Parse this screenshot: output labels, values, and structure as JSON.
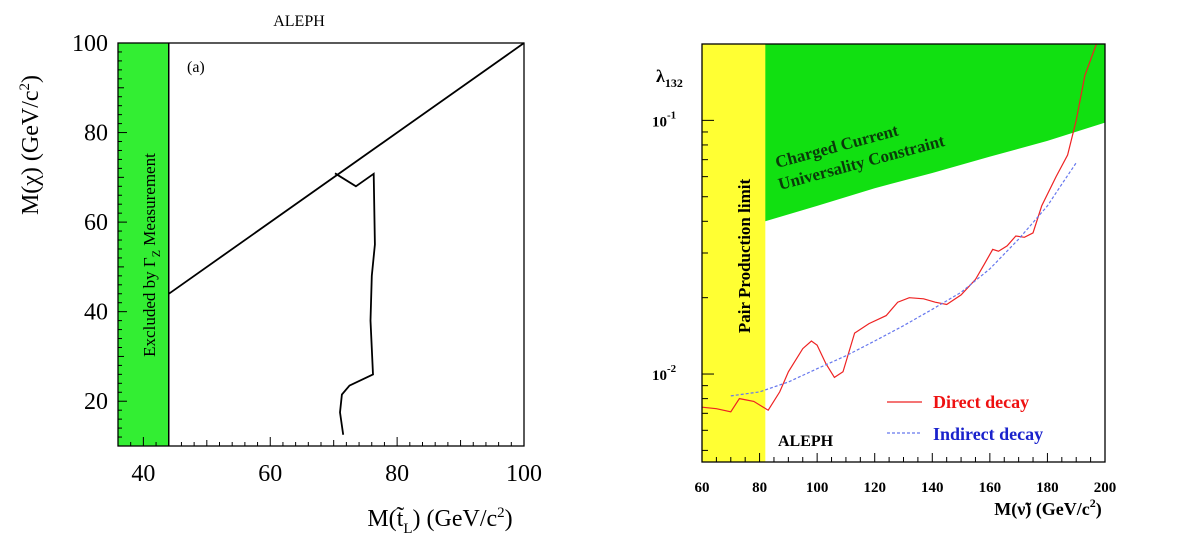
{
  "chart_data": [
    {
      "type": "line",
      "title": "ALEPH",
      "panel_label": "(a)",
      "xlabel": "M(t̃_L) (GeV/c²)",
      "ylabel": "M(χ) (GeV/c²)",
      "xlim": [
        36,
        100
      ],
      "ylim": [
        10,
        100
      ],
      "xticks": [
        40,
        60,
        80,
        100
      ],
      "yticks": [
        20,
        40,
        60,
        80,
        100
      ],
      "excluded_band": {
        "label": "Excluded by Γ_Z Measurement",
        "x_range": [
          36,
          44
        ],
        "color": "#33ee33"
      },
      "series": [
        {
          "kind": "kinematic-limit",
          "x": [
            44,
            100
          ],
          "y": [
            44,
            100
          ]
        },
        {
          "kind": "exclusion-contour",
          "x": [
            71.5,
            71.0,
            71.3,
            72.5,
            76.2,
            75.8,
            76.0,
            76.5,
            76.3,
            73.5,
            70.2
          ],
          "y": [
            12.5,
            17.5,
            21.5,
            23.5,
            26.0,
            38.0,
            48.0,
            55.0,
            70.8,
            68.0,
            70.9
          ]
        }
      ]
    },
    {
      "type": "line",
      "title": "",
      "watermark": "ALEPH",
      "xlabel": "M(ν̃) (GeV/c²)",
      "ylabel": "λ132",
      "yscale": "log",
      "xlim": [
        60,
        200
      ],
      "ylim": [
        0.0045,
        0.2
      ],
      "xticks": [
        60,
        80,
        100,
        120,
        140,
        160,
        180,
        200
      ],
      "yticks": [
        {
          "value": 0.01,
          "label": "10",
          "exp": "-2"
        },
        {
          "value": 0.1,
          "label": "10",
          "exp": "-1"
        }
      ],
      "pair_band": {
        "label": "Pair Production limit",
        "x_range": [
          60,
          82
        ],
        "color": "#ffff33"
      },
      "ccu_region": {
        "label_line1": "Charged Current",
        "label_line2": "Universality Constraint",
        "color": "#11e011",
        "boundary_x": [
          60,
          82,
          100,
          120,
          140,
          160,
          180,
          200
        ],
        "boundary_y": [
          0.03,
          0.04,
          0.046,
          0.054,
          0.062,
          0.072,
          0.083,
          0.098
        ]
      },
      "series": [
        {
          "name": "Direct decay",
          "color": "#ee2222",
          "style": "solid",
          "x": [
            60,
            65,
            70,
            73,
            78,
            83,
            87,
            90,
            95,
            98,
            100,
            103,
            106,
            109,
            113,
            118,
            124,
            128,
            132,
            137,
            141,
            145,
            150,
            155,
            158,
            161,
            163,
            166,
            169,
            172,
            175,
            178,
            183,
            187,
            190,
            193,
            197
          ],
          "y": [
            0.0074,
            0.0073,
            0.0071,
            0.008,
            0.0078,
            0.0072,
            0.0085,
            0.0102,
            0.0126,
            0.0135,
            0.013,
            0.011,
            0.0097,
            0.0102,
            0.0145,
            0.0158,
            0.017,
            0.0192,
            0.02,
            0.0198,
            0.0192,
            0.0188,
            0.0205,
            0.0236,
            0.027,
            0.031,
            0.0305,
            0.032,
            0.035,
            0.0346,
            0.036,
            0.046,
            0.06,
            0.073,
            0.1,
            0.15,
            0.2
          ]
        },
        {
          "name": "Indirect decay",
          "color": "#6677ee",
          "style": "dotted",
          "x": [
            70,
            80,
            90,
            100,
            110,
            120,
            130,
            140,
            150,
            160,
            170,
            180,
            185,
            190
          ],
          "y": [
            0.0082,
            0.0085,
            0.0093,
            0.0105,
            0.0118,
            0.0135,
            0.0155,
            0.018,
            0.021,
            0.026,
            0.034,
            0.046,
            0.056,
            0.068
          ]
        }
      ]
    }
  ]
}
